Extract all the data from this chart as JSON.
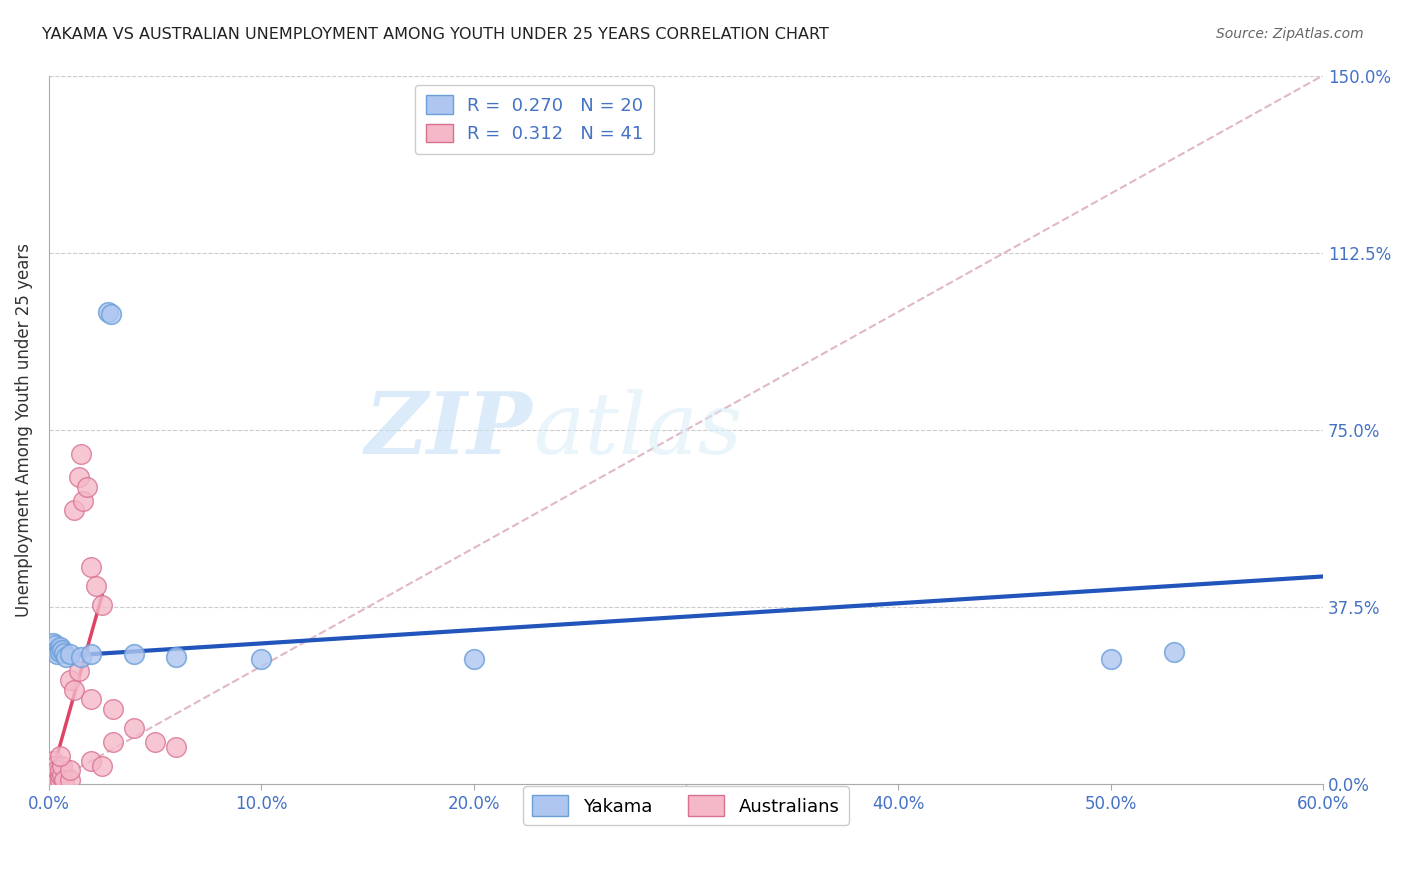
{
  "title": "YAKAMA VS AUSTRALIAN UNEMPLOYMENT AMONG YOUTH UNDER 25 YEARS CORRELATION CHART",
  "source": "Source: ZipAtlas.com",
  "ylabel": "Unemployment Among Youth under 25 years",
  "xlim": [
    0.0,
    0.6
  ],
  "ylim": [
    0.0,
    1.5
  ],
  "xlabel_vals": [
    0.0,
    0.1,
    0.2,
    0.3,
    0.4,
    0.5,
    0.6
  ],
  "xlabel_ticks": [
    "0.0%",
    "10.0%",
    "20.0%",
    "30.0%",
    "40.0%",
    "50.0%",
    "60.0%"
  ],
  "ylabel_vals": [
    0.0,
    0.375,
    0.75,
    1.125,
    1.5
  ],
  "ylabel_ticks": [
    "0.0%",
    "37.5%",
    "75.0%",
    "112.5%",
    "150.0%"
  ],
  "yakama_points": [
    [
      0.028,
      1.0
    ],
    [
      0.029,
      0.995
    ],
    [
      0.002,
      0.3
    ],
    [
      0.003,
      0.295
    ],
    [
      0.004,
      0.285
    ],
    [
      0.004,
      0.275
    ],
    [
      0.005,
      0.29
    ],
    [
      0.005,
      0.28
    ],
    [
      0.006,
      0.285
    ],
    [
      0.007,
      0.278
    ],
    [
      0.008,
      0.27
    ],
    [
      0.01,
      0.275
    ],
    [
      0.015,
      0.27
    ],
    [
      0.02,
      0.275
    ],
    [
      0.04,
      0.275
    ],
    [
      0.06,
      0.27
    ],
    [
      0.1,
      0.265
    ],
    [
      0.2,
      0.265
    ],
    [
      0.5,
      0.265
    ],
    [
      0.53,
      0.28
    ]
  ],
  "australian_points": [
    [
      0.001,
      0.01
    ],
    [
      0.001,
      0.02
    ],
    [
      0.001,
      0.03
    ],
    [
      0.001,
      0.04
    ],
    [
      0.002,
      0.01
    ],
    [
      0.002,
      0.02
    ],
    [
      0.002,
      0.03
    ],
    [
      0.002,
      0.05
    ],
    [
      0.003,
      0.01
    ],
    [
      0.003,
      0.02
    ],
    [
      0.003,
      0.04
    ],
    [
      0.004,
      0.01
    ],
    [
      0.004,
      0.03
    ],
    [
      0.005,
      0.01
    ],
    [
      0.005,
      0.02
    ],
    [
      0.005,
      0.03
    ],
    [
      0.006,
      0.02
    ],
    [
      0.006,
      0.04
    ],
    [
      0.007,
      0.01
    ],
    [
      0.01,
      0.01
    ],
    [
      0.01,
      0.03
    ],
    [
      0.012,
      0.58
    ],
    [
      0.014,
      0.65
    ],
    [
      0.015,
      0.7
    ],
    [
      0.016,
      0.6
    ],
    [
      0.018,
      0.63
    ],
    [
      0.02,
      0.46
    ],
    [
      0.022,
      0.42
    ],
    [
      0.025,
      0.38
    ],
    [
      0.01,
      0.22
    ],
    [
      0.012,
      0.2
    ],
    [
      0.014,
      0.24
    ],
    [
      0.02,
      0.18
    ],
    [
      0.03,
      0.16
    ],
    [
      0.03,
      0.09
    ],
    [
      0.04,
      0.12
    ],
    [
      0.05,
      0.09
    ],
    [
      0.06,
      0.08
    ],
    [
      0.005,
      0.06
    ],
    [
      0.02,
      0.05
    ],
    [
      0.025,
      0.04
    ]
  ],
  "yakama_line": {
    "x0": 0.0,
    "y0": 0.27,
    "x1": 0.6,
    "y1": 0.44
  },
  "australian_line": {
    "x0": 0.0,
    "y0": 0.0,
    "x1": 0.025,
    "y1": 0.4
  },
  "diagonal_line": {
    "x0": 0.0,
    "y0": 0.0,
    "x1": 0.6,
    "y1": 1.5
  },
  "bg_color": "#ffffff",
  "grid_color": "#cccccc",
  "grid_linestyle": "--",
  "yakama_scatter_color": "#aec6f0",
  "yakama_scatter_edge": "#6a9fd8",
  "australian_scatter_color": "#f4b8c8",
  "australian_scatter_edge": "#d87090",
  "yakama_line_color": "#2255bb",
  "australian_line_color": "#dd4466",
  "diagonal_color": "#e0b8c8",
  "tick_label_color": "#4472c4",
  "title_color": "#222222",
  "source_color": "#666666",
  "legend1_R": "0.270",
  "legend1_N": "20",
  "legend2_R": "0.312",
  "legend2_N": "41",
  "legend1_label": "Yakama",
  "legend2_label": "Australians"
}
